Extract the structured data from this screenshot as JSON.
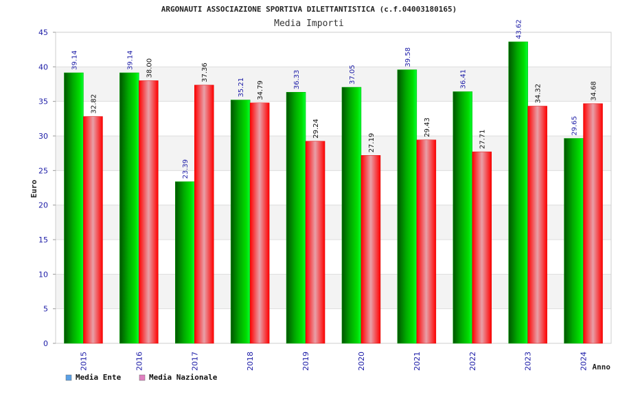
{
  "chart_data": {
    "type": "bar",
    "title": "ARGONAUTI ASSOCIAZIONE SPORTIVA DILETTANTISTICA (c.f.04003180165)",
    "subtitle": "Media Importi",
    "xlabel": "Anno",
    "ylabel": "Euro",
    "ylim": [
      0,
      45
    ],
    "yticks": [
      "0",
      "5",
      "10",
      "15",
      "20",
      "25",
      "30",
      "35",
      "40",
      "45"
    ],
    "grid": true,
    "legend_position": "bottom-left",
    "categories": [
      "2015",
      "2016",
      "2017",
      "2018",
      "2019",
      "2020",
      "2021",
      "2022",
      "2023",
      "2024"
    ],
    "series": [
      {
        "name": "Media Ente",
        "color": "#00bb00",
        "legend_color": "#5aa0e6",
        "values": [
          39.14,
          39.14,
          23.39,
          35.21,
          36.33,
          37.05,
          39.58,
          36.41,
          43.62,
          29.65
        ],
        "labels": [
          "39.14",
          "39.14",
          "23.39",
          "35.21",
          "36.33",
          "37.05",
          "39.58",
          "36.41",
          "43.62",
          "29.65"
        ]
      },
      {
        "name": "Media Nazionale",
        "color": "#ee1111",
        "legend_color": "#e080c0",
        "values": [
          32.82,
          38.0,
          37.36,
          34.79,
          29.24,
          27.19,
          29.43,
          27.71,
          34.32,
          34.68
        ],
        "labels": [
          "32.82",
          "38.00",
          "37.36",
          "34.79",
          "29.24",
          "27.19",
          "29.43",
          "27.71",
          "34.32",
          "34.68"
        ]
      }
    ]
  }
}
